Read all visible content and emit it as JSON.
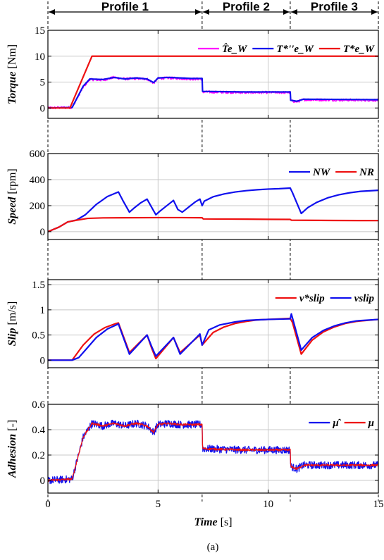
{
  "chart_data": {
    "type": "line",
    "caption": "(a)",
    "x_axis": {
      "label": "Time",
      "unit": "[s]",
      "range": [
        0,
        15
      ],
      "ticks": [
        "0",
        "5",
        "10",
        "15"
      ]
    },
    "profiles": [
      {
        "label": "Profile 1",
        "start": 0,
        "end": 7
      },
      {
        "label": "Profile 2",
        "start": 7,
        "end": 11
      },
      {
        "label": "Profile 3",
        "start": 11,
        "end": 15
      }
    ],
    "panels": [
      {
        "ylabel": "Torque",
        "unit": "[Nm]",
        "ylim": [
          -2,
          15
        ],
        "grid": true,
        "legend_position": "top-right",
        "yticks": [
          0,
          5,
          10,
          15
        ],
        "ytick_labels": [
          "0",
          "5",
          "10",
          "15"
        ],
        "series": [
          {
            "name": "T̂e_W",
            "color": "#ff00ff",
            "noise": 0.25,
            "points": [
              [
                0,
                0
              ],
              [
                1.1,
                0.1
              ],
              [
                1.6,
                4.0
              ],
              [
                1.9,
                5.5
              ],
              [
                2.5,
                5.4
              ],
              [
                3,
                5.9
              ],
              [
                3.5,
                5.6
              ],
              [
                4,
                5.7
              ],
              [
                4.5,
                5.6
              ],
              [
                4.8,
                4.8
              ],
              [
                5,
                5.7
              ],
              [
                5.5,
                5.8
              ],
              [
                6,
                5.7
              ],
              [
                6.5,
                5.6
              ],
              [
                7,
                5.6
              ],
              [
                7.02,
                3.1
              ],
              [
                9,
                3.0
              ],
              [
                11,
                3.0
              ],
              [
                11.02,
                1.4
              ],
              [
                11.3,
                1.2
              ],
              [
                11.6,
                1.6
              ],
              [
                15,
                1.5
              ]
            ]
          },
          {
            "name": "T*''e_W",
            "color": "#1010ee",
            "noise": 0,
            "points": [
              [
                0,
                0
              ],
              [
                1.1,
                0.1
              ],
              [
                1.6,
                4.2
              ],
              [
                1.9,
                5.6
              ],
              [
                2.5,
                5.5
              ],
              [
                3,
                5.9
              ],
              [
                3.5,
                5.6
              ],
              [
                4,
                5.8
              ],
              [
                4.5,
                5.6
              ],
              [
                4.8,
                4.9
              ],
              [
                5,
                5.8
              ],
              [
                5.5,
                5.9
              ],
              [
                6,
                5.8
              ],
              [
                6.5,
                5.7
              ],
              [
                7,
                5.7
              ],
              [
                7.02,
                3.2
              ],
              [
                9,
                3.1
              ],
              [
                11,
                3.1
              ],
              [
                11.02,
                1.5
              ],
              [
                11.3,
                1.3
              ],
              [
                11.6,
                1.7
              ],
              [
                15,
                1.6
              ]
            ]
          },
          {
            "name": "T*e_W",
            "color": "#ee1111",
            "noise": 0,
            "points": [
              [
                0,
                0
              ],
              [
                1,
                0
              ],
              [
                2,
                10
              ],
              [
                15,
                10
              ]
            ]
          }
        ]
      },
      {
        "ylabel": "Speed",
        "unit": "[rpm]",
        "ylim": [
          -60,
          600
        ],
        "grid": true,
        "legend_position": "top-right",
        "yticks": [
          0,
          200,
          400,
          600
        ],
        "ytick_labels": [
          "0",
          "200",
          "400",
          "600"
        ],
        "series": [
          {
            "name": "NW",
            "color": "#1010ee",
            "noise": 0,
            "points": [
              [
                0,
                0
              ],
              [
                0.5,
                35
              ],
              [
                0.9,
                75
              ],
              [
                1.3,
                90
              ],
              [
                1.7,
                130
              ],
              [
                2.2,
                210
              ],
              [
                2.7,
                270
              ],
              [
                3.2,
                305
              ],
              [
                3.4,
                240
              ],
              [
                3.7,
                150
              ],
              [
                3.9,
                180
              ],
              [
                4.2,
                220
              ],
              [
                4.5,
                250
              ],
              [
                4.7,
                190
              ],
              [
                4.9,
                130
              ],
              [
                5.1,
                160
              ],
              [
                5.4,
                200
              ],
              [
                5.7,
                240
              ],
              [
                5.9,
                170
              ],
              [
                6.1,
                150
              ],
              [
                6.4,
                190
              ],
              [
                6.7,
                230
              ],
              [
                6.9,
                250
              ],
              [
                7,
                200
              ],
              [
                7.1,
                235
              ],
              [
                7.5,
                268
              ],
              [
                8,
                290
              ],
              [
                8.5,
                305
              ],
              [
                9,
                315
              ],
              [
                9.5,
                322
              ],
              [
                10,
                327
              ],
              [
                10.5,
                330
              ],
              [
                11,
                335
              ],
              [
                11.1,
                300
              ],
              [
                11.5,
                140
              ],
              [
                11.8,
                185
              ],
              [
                12.2,
                225
              ],
              [
                12.7,
                260
              ],
              [
                13.2,
                283
              ],
              [
                13.7,
                299
              ],
              [
                14.2,
                310
              ],
              [
                15,
                318
              ]
            ]
          },
          {
            "name": "NR",
            "color": "#ee1111",
            "noise": 0,
            "points": [
              [
                0,
                0
              ],
              [
                0.5,
                35
              ],
              [
                0.9,
                75
              ],
              [
                1.3,
                88
              ],
              [
                1.8,
                102
              ],
              [
                2.5,
                106
              ],
              [
                3.5,
                107
              ],
              [
                5,
                108
              ],
              [
                6,
                108
              ],
              [
                7,
                107
              ],
              [
                7.05,
                98
              ],
              [
                9,
                96
              ],
              [
                11,
                94
              ],
              [
                11.05,
                88
              ],
              [
                13,
                86
              ],
              [
                15,
                85
              ]
            ]
          }
        ]
      },
      {
        "ylabel": "Slip",
        "unit": "[m/s]",
        "ylim": [
          -0.15,
          1.6
        ],
        "grid": true,
        "legend_position": "top-right",
        "yticks": [
          0,
          0.5,
          1,
          1.5
        ],
        "ytick_labels": [
          "0",
          "0.5",
          "1",
          "1.5"
        ],
        "series": [
          {
            "name": "v*slip",
            "color": "#ee1111",
            "noise": 0,
            "points": [
              [
                0,
                0
              ],
              [
                1.1,
                0
              ],
              [
                1.6,
                0.3
              ],
              [
                2.1,
                0.52
              ],
              [
                2.6,
                0.65
              ],
              [
                3.1,
                0.73
              ],
              [
                3.2,
                0.74
              ],
              [
                3.7,
                0.15
              ],
              [
                4.5,
                0.5
              ],
              [
                4.7,
                0.25
              ],
              [
                4.9,
                0.03
              ],
              [
                5.7,
                0.45
              ],
              [
                6,
                0.15
              ],
              [
                6.9,
                0.5
              ],
              [
                7,
                0.3
              ],
              [
                7.5,
                0.55
              ],
              [
                8,
                0.66
              ],
              [
                8.5,
                0.73
              ],
              [
                9,
                0.77
              ],
              [
                9.5,
                0.8
              ],
              [
                10,
                0.81
              ],
              [
                11,
                0.83
              ],
              [
                11.1,
                0.75
              ],
              [
                11.5,
                0.12
              ],
              [
                12,
                0.4
              ],
              [
                12.5,
                0.56
              ],
              [
                13,
                0.66
              ],
              [
                13.5,
                0.73
              ],
              [
                14,
                0.77
              ],
              [
                15,
                0.81
              ]
            ]
          },
          {
            "name": "vslip",
            "color": "#1010ee",
            "noise": 0,
            "points": [
              [
                0,
                0
              ],
              [
                1.1,
                0
              ],
              [
                1.4,
                0.05
              ],
              [
                1.7,
                0.2
              ],
              [
                2.2,
                0.45
              ],
              [
                2.7,
                0.62
              ],
              [
                3.2,
                0.72
              ],
              [
                3.7,
                0.12
              ],
              [
                4.5,
                0.5
              ],
              [
                4.7,
                0.28
              ],
              [
                4.9,
                0.08
              ],
              [
                5.7,
                0.45
              ],
              [
                6,
                0.12
              ],
              [
                6.9,
                0.52
              ],
              [
                7,
                0.3
              ],
              [
                7.3,
                0.6
              ],
              [
                7.8,
                0.7
              ],
              [
                8.5,
                0.76
              ],
              [
                9,
                0.79
              ],
              [
                9.5,
                0.8
              ],
              [
                10,
                0.81
              ],
              [
                11,
                0.82
              ],
              [
                11.05,
                0.92
              ],
              [
                11.5,
                0.2
              ],
              [
                12,
                0.45
              ],
              [
                12.5,
                0.59
              ],
              [
                13,
                0.68
              ],
              [
                13.5,
                0.74
              ],
              [
                14,
                0.78
              ],
              [
                15,
                0.81
              ]
            ]
          }
        ]
      },
      {
        "ylabel": "Adhesion",
        "unit": "[-]",
        "ylim": [
          -0.1,
          0.6
        ],
        "grid": true,
        "legend_position": "top-right",
        "yticks": [
          0,
          0.2,
          0.4,
          0.6
        ],
        "ytick_labels": [
          "0",
          "0.2",
          "0.4",
          "0.6"
        ],
        "series": [
          {
            "name": "μ̂",
            "color": "#1010ee",
            "noise": 0.03,
            "points": [
              [
                0,
                0
              ],
              [
                1.1,
                0.01
              ],
              [
                1.6,
                0.34
              ],
              [
                2,
                0.45
              ],
              [
                2.5,
                0.43
              ],
              [
                3,
                0.45
              ],
              [
                3.5,
                0.43
              ],
              [
                4,
                0.45
              ],
              [
                4.5,
                0.43
              ],
              [
                4.8,
                0.38
              ],
              [
                5,
                0.44
              ],
              [
                5.5,
                0.45
              ],
              [
                6,
                0.44
              ],
              [
                7,
                0.44
              ],
              [
                7.02,
                0.25
              ],
              [
                9,
                0.24
              ],
              [
                11,
                0.24
              ],
              [
                11.02,
                0.11
              ],
              [
                11.3,
                0.09
              ],
              [
                11.6,
                0.12
              ],
              [
                15,
                0.12
              ]
            ]
          },
          {
            "name": "μ",
            "color": "#ee1111",
            "noise": 0.008,
            "points": [
              [
                0,
                0
              ],
              [
                1.1,
                0.01
              ],
              [
                1.6,
                0.34
              ],
              [
                2,
                0.45
              ],
              [
                2.5,
                0.43
              ],
              [
                3,
                0.45
              ],
              [
                3.5,
                0.43
              ],
              [
                4,
                0.45
              ],
              [
                4.5,
                0.43
              ],
              [
                4.8,
                0.38
              ],
              [
                5,
                0.44
              ],
              [
                5.5,
                0.45
              ],
              [
                6,
                0.44
              ],
              [
                7,
                0.44
              ],
              [
                7.02,
                0.25
              ],
              [
                9,
                0.24
              ],
              [
                11,
                0.24
              ],
              [
                11.02,
                0.11
              ],
              [
                11.3,
                0.09
              ],
              [
                11.6,
                0.12
              ],
              [
                15,
                0.12
              ]
            ]
          }
        ]
      }
    ]
  }
}
